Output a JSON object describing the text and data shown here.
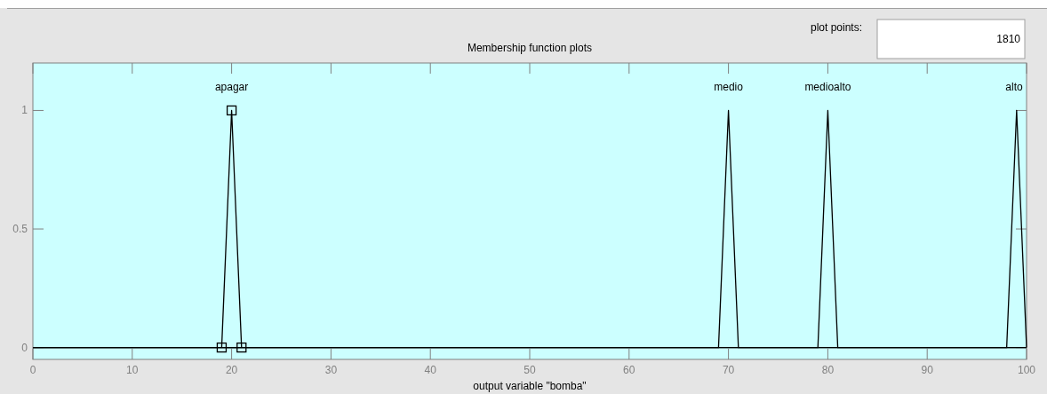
{
  "chart_data": {
    "type": "line",
    "title": "Membership function plots",
    "xlabel": "output variable \"bomba\"",
    "annotations": [
      "plot points:",
      "1810"
    ],
    "xlim": [
      0,
      100
    ],
    "xticks": [
      0,
      10,
      20,
      30,
      40,
      50,
      60,
      70,
      80,
      90,
      100
    ],
    "ylim": [
      -0.05,
      1.2
    ],
    "yticks": [
      0,
      0.5,
      1
    ],
    "line_style": "solid",
    "series": [
      {
        "name": "apagar",
        "color": "#000000",
        "x": [
          19,
          20,
          21
        ],
        "values": [
          0,
          1,
          0
        ],
        "marker": "square"
      },
      {
        "name": "medio",
        "color": "#000000",
        "x": [
          0,
          69,
          70,
          71,
          100
        ],
        "values": [
          0,
          0,
          1,
          0,
          0
        ]
      },
      {
        "name": "medioalto",
        "color": "#000000",
        "x": [
          0,
          79,
          80,
          81,
          100
        ],
        "values": [
          0,
          0,
          1,
          0,
          0
        ]
      },
      {
        "name": "alto",
        "color": "#000000",
        "x": [
          0,
          98,
          99,
          100
        ],
        "values": [
          0,
          0,
          1,
          0
        ]
      }
    ]
  }
}
